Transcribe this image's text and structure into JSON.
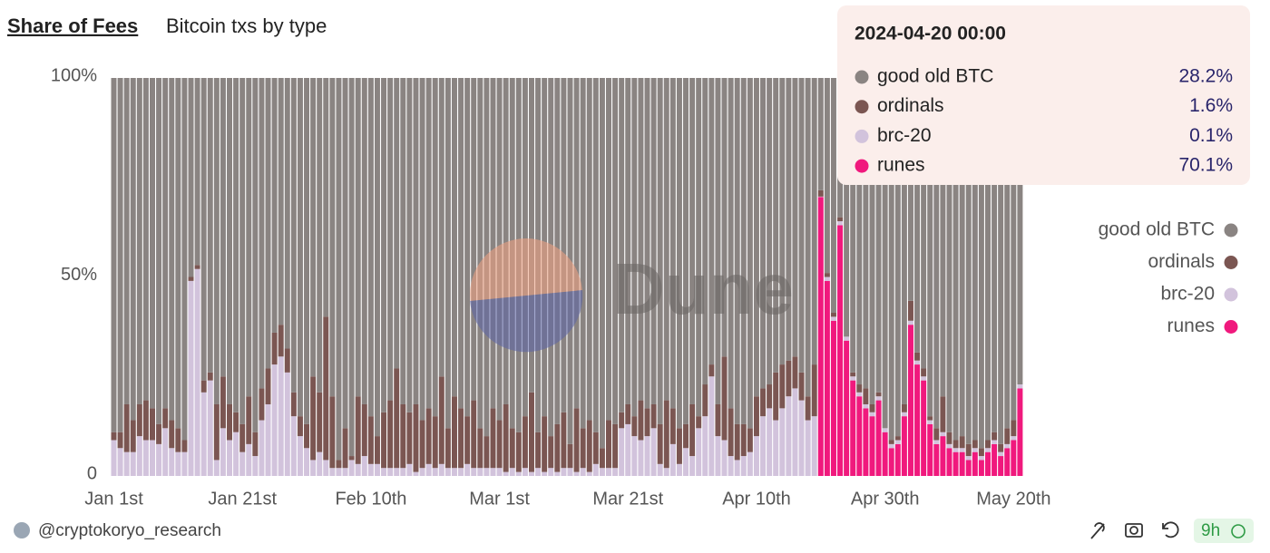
{
  "chart_data": {
    "type": "stacked_bar_percent",
    "title": "Share of Fees",
    "subtitle": "Bitcoin txs by type",
    "x": [
      "2024-01-01",
      "2024-01-02",
      "2024-01-03",
      "2024-01-04",
      "2024-01-05",
      "2024-01-06",
      "2024-01-07",
      "2024-01-08",
      "2024-01-09",
      "2024-01-10",
      "2024-01-11",
      "2024-01-12",
      "2024-01-13",
      "2024-01-14",
      "2024-01-15",
      "2024-01-16",
      "2024-01-17",
      "2024-01-18",
      "2024-01-19",
      "2024-01-20",
      "2024-01-21",
      "2024-01-22",
      "2024-01-23",
      "2024-01-24",
      "2024-01-25",
      "2024-01-26",
      "2024-01-27",
      "2024-01-28",
      "2024-01-29",
      "2024-01-30",
      "2024-01-31",
      "2024-02-01",
      "2024-02-02",
      "2024-02-03",
      "2024-02-04",
      "2024-02-05",
      "2024-02-06",
      "2024-02-07",
      "2024-02-08",
      "2024-02-09",
      "2024-02-10",
      "2024-02-11",
      "2024-02-12",
      "2024-02-13",
      "2024-02-14",
      "2024-02-15",
      "2024-02-16",
      "2024-02-17",
      "2024-02-18",
      "2024-02-19",
      "2024-02-20",
      "2024-02-21",
      "2024-02-22",
      "2024-02-23",
      "2024-02-24",
      "2024-02-25",
      "2024-02-26",
      "2024-02-27",
      "2024-02-28",
      "2024-02-29",
      "2024-03-01",
      "2024-03-02",
      "2024-03-03",
      "2024-03-04",
      "2024-03-05",
      "2024-03-06",
      "2024-03-07",
      "2024-03-08",
      "2024-03-09",
      "2024-03-10",
      "2024-03-11",
      "2024-03-12",
      "2024-03-13",
      "2024-03-14",
      "2024-03-15",
      "2024-03-16",
      "2024-03-17",
      "2024-03-18",
      "2024-03-19",
      "2024-03-20",
      "2024-03-21",
      "2024-03-22",
      "2024-03-23",
      "2024-03-24",
      "2024-03-25",
      "2024-03-26",
      "2024-03-27",
      "2024-03-28",
      "2024-03-29",
      "2024-03-30",
      "2024-03-31",
      "2024-04-01",
      "2024-04-02",
      "2024-04-03",
      "2024-04-04",
      "2024-04-05",
      "2024-04-06",
      "2024-04-07",
      "2024-04-08",
      "2024-04-09",
      "2024-04-10",
      "2024-04-11",
      "2024-04-12",
      "2024-04-13",
      "2024-04-14",
      "2024-04-15",
      "2024-04-16",
      "2024-04-17",
      "2024-04-18",
      "2024-04-19",
      "2024-04-20",
      "2024-04-21",
      "2024-04-22",
      "2024-04-23",
      "2024-04-24",
      "2024-04-25",
      "2024-04-26",
      "2024-04-27",
      "2024-04-28",
      "2024-04-29",
      "2024-04-30",
      "2024-05-01",
      "2024-05-02",
      "2024-05-03",
      "2024-05-04",
      "2024-05-05",
      "2024-05-06",
      "2024-05-07",
      "2024-05-08",
      "2024-05-09",
      "2024-05-10",
      "2024-05-11",
      "2024-05-12",
      "2024-05-13",
      "2024-05-14",
      "2024-05-15",
      "2024-05-16",
      "2024-05-17",
      "2024-05-18",
      "2024-05-19",
      "2024-05-20",
      "2024-05-21"
    ],
    "series": [
      {
        "name": "good old BTC",
        "color": "#8a8482",
        "values": [
          89,
          89,
          82,
          86,
          82,
          81,
          83,
          87,
          83,
          86,
          88,
          91,
          50,
          47,
          76,
          74,
          82,
          75,
          82,
          84,
          87,
          80,
          89,
          78,
          73,
          64,
          62,
          68,
          79,
          85,
          87,
          75,
          79,
          60,
          80,
          96,
          88,
          95,
          80,
          82,
          85,
          90,
          84,
          81,
          73,
          82,
          84,
          82,
          86,
          83,
          85,
          75,
          88,
          80,
          83,
          85,
          81,
          88,
          90,
          83,
          86,
          82,
          88,
          89,
          85,
          79,
          89,
          85,
          90,
          87,
          84,
          92,
          83,
          88,
          86,
          89,
          93,
          86,
          87,
          84,
          82,
          85,
          81,
          83,
          82,
          87,
          81,
          83,
          88,
          87,
          82,
          85,
          77,
          72,
          82,
          70,
          83,
          87,
          87,
          88,
          80,
          78,
          77,
          74,
          72,
          71,
          70,
          74,
          80,
          72,
          28.2,
          49,
          59,
          35,
          65,
          74,
          77,
          78,
          82,
          79,
          88,
          91,
          90,
          82,
          56,
          69,
          73,
          85,
          88,
          80,
          89,
          91,
          90,
          92,
          91,
          93,
          91,
          89,
          92,
          88,
          86,
          77
        ]
      },
      {
        "name": "ordinals",
        "color": "#7b5652",
        "values": [
          2,
          4,
          12,
          8,
          8,
          10,
          8,
          5,
          5,
          7,
          6,
          3,
          1,
          1,
          3,
          2,
          14,
          13,
          9,
          5,
          7,
          12,
          6,
          8,
          9,
          8,
          8,
          6,
          6,
          5,
          6,
          21,
          15,
          36,
          18,
          2,
          10,
          1,
          17,
          13,
          12,
          7,
          14,
          17,
          25,
          16,
          13,
          17,
          12,
          14,
          13,
          22,
          10,
          18,
          15,
          12,
          17,
          10,
          8,
          15,
          12,
          17,
          10,
          10,
          13,
          20,
          9,
          14,
          8,
          12,
          14,
          6,
          16,
          10,
          13,
          8,
          5,
          12,
          11,
          4,
          5,
          5,
          10,
          7,
          6,
          10,
          17,
          9,
          9,
          6,
          13,
          3,
          8,
          3,
          8,
          21,
          12,
          9,
          8,
          6,
          10,
          7,
          6,
          12,
          11,
          9,
          8,
          7,
          6,
          13,
          1.6,
          1,
          1,
          1,
          0,
          1,
          2,
          4,
          2,
          1,
          0,
          1,
          1,
          2,
          5,
          2,
          2,
          1,
          3,
          9,
          3,
          2,
          3,
          3,
          2,
          2,
          2,
          2,
          2,
          4,
          4,
          0
        ]
      },
      {
        "name": "brc-20",
        "color": "#d2c3dc",
        "values": [
          9,
          7,
          6,
          6,
          10,
          9,
          9,
          8,
          12,
          7,
          6,
          6,
          49,
          52,
          21,
          24,
          4,
          12,
          9,
          11,
          6,
          8,
          5,
          14,
          18,
          28,
          30,
          26,
          15,
          10,
          7,
          4,
          6,
          4,
          2,
          2,
          2,
          4,
          3,
          5,
          3,
          3,
          2,
          2,
          2,
          2,
          3,
          1,
          2,
          3,
          2,
          3,
          2,
          2,
          2,
          3,
          2,
          2,
          2,
          2,
          2,
          1,
          2,
          1,
          2,
          1,
          2,
          1,
          2,
          1,
          2,
          2,
          1,
          2,
          1,
          3,
          2,
          2,
          2,
          12,
          13,
          10,
          9,
          10,
          12,
          3,
          2,
          8,
          3,
          7,
          5,
          12,
          15,
          25,
          10,
          9,
          5,
          4,
          5,
          6,
          10,
          15,
          17,
          14,
          17,
          20,
          22,
          19,
          14,
          15,
          0.1,
          1,
          1,
          1,
          1,
          1,
          1,
          1,
          1,
          1,
          1,
          1,
          1,
          1,
          1,
          1,
          1,
          1,
          1,
          1,
          1,
          1,
          1,
          1,
          1,
          1,
          1,
          1,
          1,
          1,
          1,
          1
        ]
      },
      {
        "name": "runes",
        "color": "#f0197d",
        "values": [
          0,
          0,
          0,
          0,
          0,
          0,
          0,
          0,
          0,
          0,
          0,
          0,
          0,
          0,
          0,
          0,
          0,
          0,
          0,
          0,
          0,
          0,
          0,
          0,
          0,
          0,
          0,
          0,
          0,
          0,
          0,
          0,
          0,
          0,
          0,
          0,
          0,
          0,
          0,
          0,
          0,
          0,
          0,
          0,
          0,
          0,
          0,
          0,
          0,
          0,
          0,
          0,
          0,
          0,
          0,
          0,
          0,
          0,
          0,
          0,
          0,
          0,
          0,
          0,
          0,
          0,
          0,
          0,
          0,
          0,
          0,
          0,
          0,
          0,
          0,
          0,
          0,
          0,
          0,
          0,
          0,
          0,
          0,
          0,
          0,
          0,
          0,
          0,
          0,
          0,
          0,
          0,
          0,
          0,
          0,
          0,
          0,
          0,
          0,
          0,
          0,
          0,
          0,
          0,
          0,
          0,
          0,
          0,
          0,
          0,
          70.1,
          49,
          39,
          63,
          34,
          24,
          20,
          17,
          15,
          19,
          11,
          7,
          8,
          15,
          38,
          28,
          24,
          13,
          8,
          10,
          7,
          6,
          6,
          4,
          6,
          4,
          6,
          8,
          5,
          7,
          9,
          22
        ]
      }
    ],
    "ylim": [
      0,
      100
    ],
    "yticks": [
      {
        "value": 0,
        "label": "0"
      },
      {
        "value": 50,
        "label": "50%"
      },
      {
        "value": 100,
        "label": "100%"
      }
    ],
    "xticks": [
      {
        "value": "2024-01-01",
        "label": "Jan 1st"
      },
      {
        "value": "2024-01-21",
        "label": "Jan 21st"
      },
      {
        "value": "2024-02-10",
        "label": "Feb 10th"
      },
      {
        "value": "2024-03-01",
        "label": "Mar 1st"
      },
      {
        "value": "2024-03-21",
        "label": "Mar 21st"
      },
      {
        "value": "2024-04-10",
        "label": "Apr 10th"
      },
      {
        "value": "2024-04-30",
        "label": "Apr 30th"
      },
      {
        "value": "2024-05-20",
        "label": "May 20th"
      }
    ],
    "grid": false,
    "legend": "right",
    "tooltip": {
      "title": "2024-04-20 00:00",
      "value_labels": [
        "28.2%",
        "1.6%",
        "0.1%",
        "70.1%"
      ]
    }
  },
  "page": {
    "watermark": "Dune",
    "author": "@cryptokoryo_research",
    "age": "9h"
  }
}
